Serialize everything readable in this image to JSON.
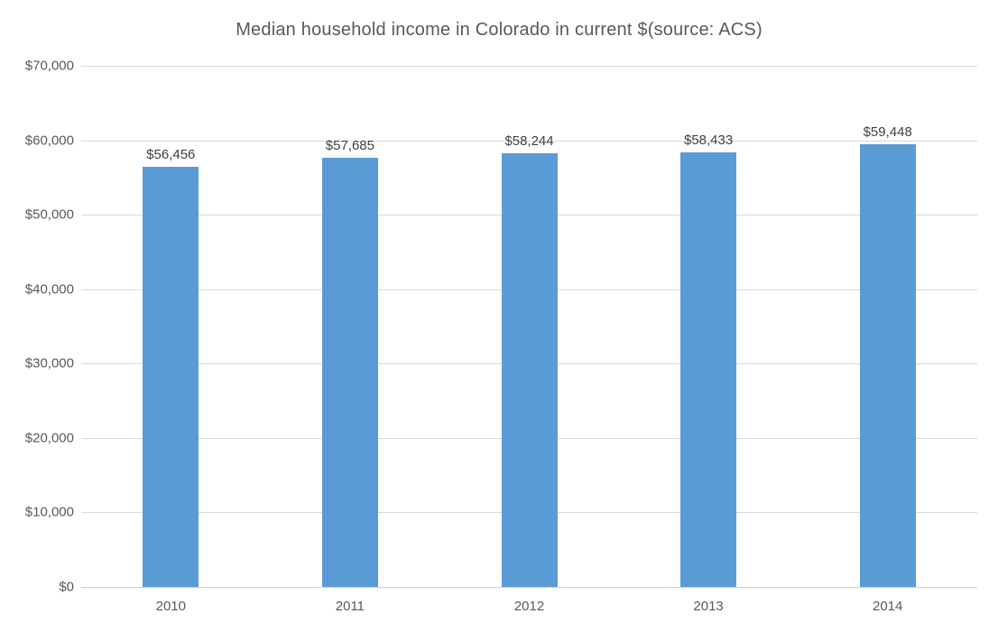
{
  "chart_data": {
    "type": "bar",
    "title": "Median household income in Colorado in current $(source: ACS)",
    "categories": [
      "2010",
      "2011",
      "2012",
      "2013",
      "2014"
    ],
    "values": [
      56456,
      57685,
      58244,
      58433,
      59448
    ],
    "data_labels": [
      "$56,456",
      "$57,685",
      "$58,244",
      "$58,433",
      "$59,448"
    ],
    "series_name": "Median household income",
    "xlabel": "",
    "ylabel": "",
    "ylim": [
      0,
      70000
    ],
    "y_tick_step": 10000,
    "y_tick_labels": [
      "$70,000",
      "$60,000",
      "$50,000",
      "$40,000",
      "$30,000",
      "$20,000",
      "$10,000",
      "$0"
    ],
    "grid": true,
    "legend_position": "none",
    "colors": {
      "bar": "#5b9bd5",
      "gridline": "#d9d9d9",
      "axis_line": "#cfcfcf",
      "title_text": "#595959",
      "tick_text": "#595959",
      "data_label_text": "#404040",
      "background": "#ffffff"
    }
  }
}
